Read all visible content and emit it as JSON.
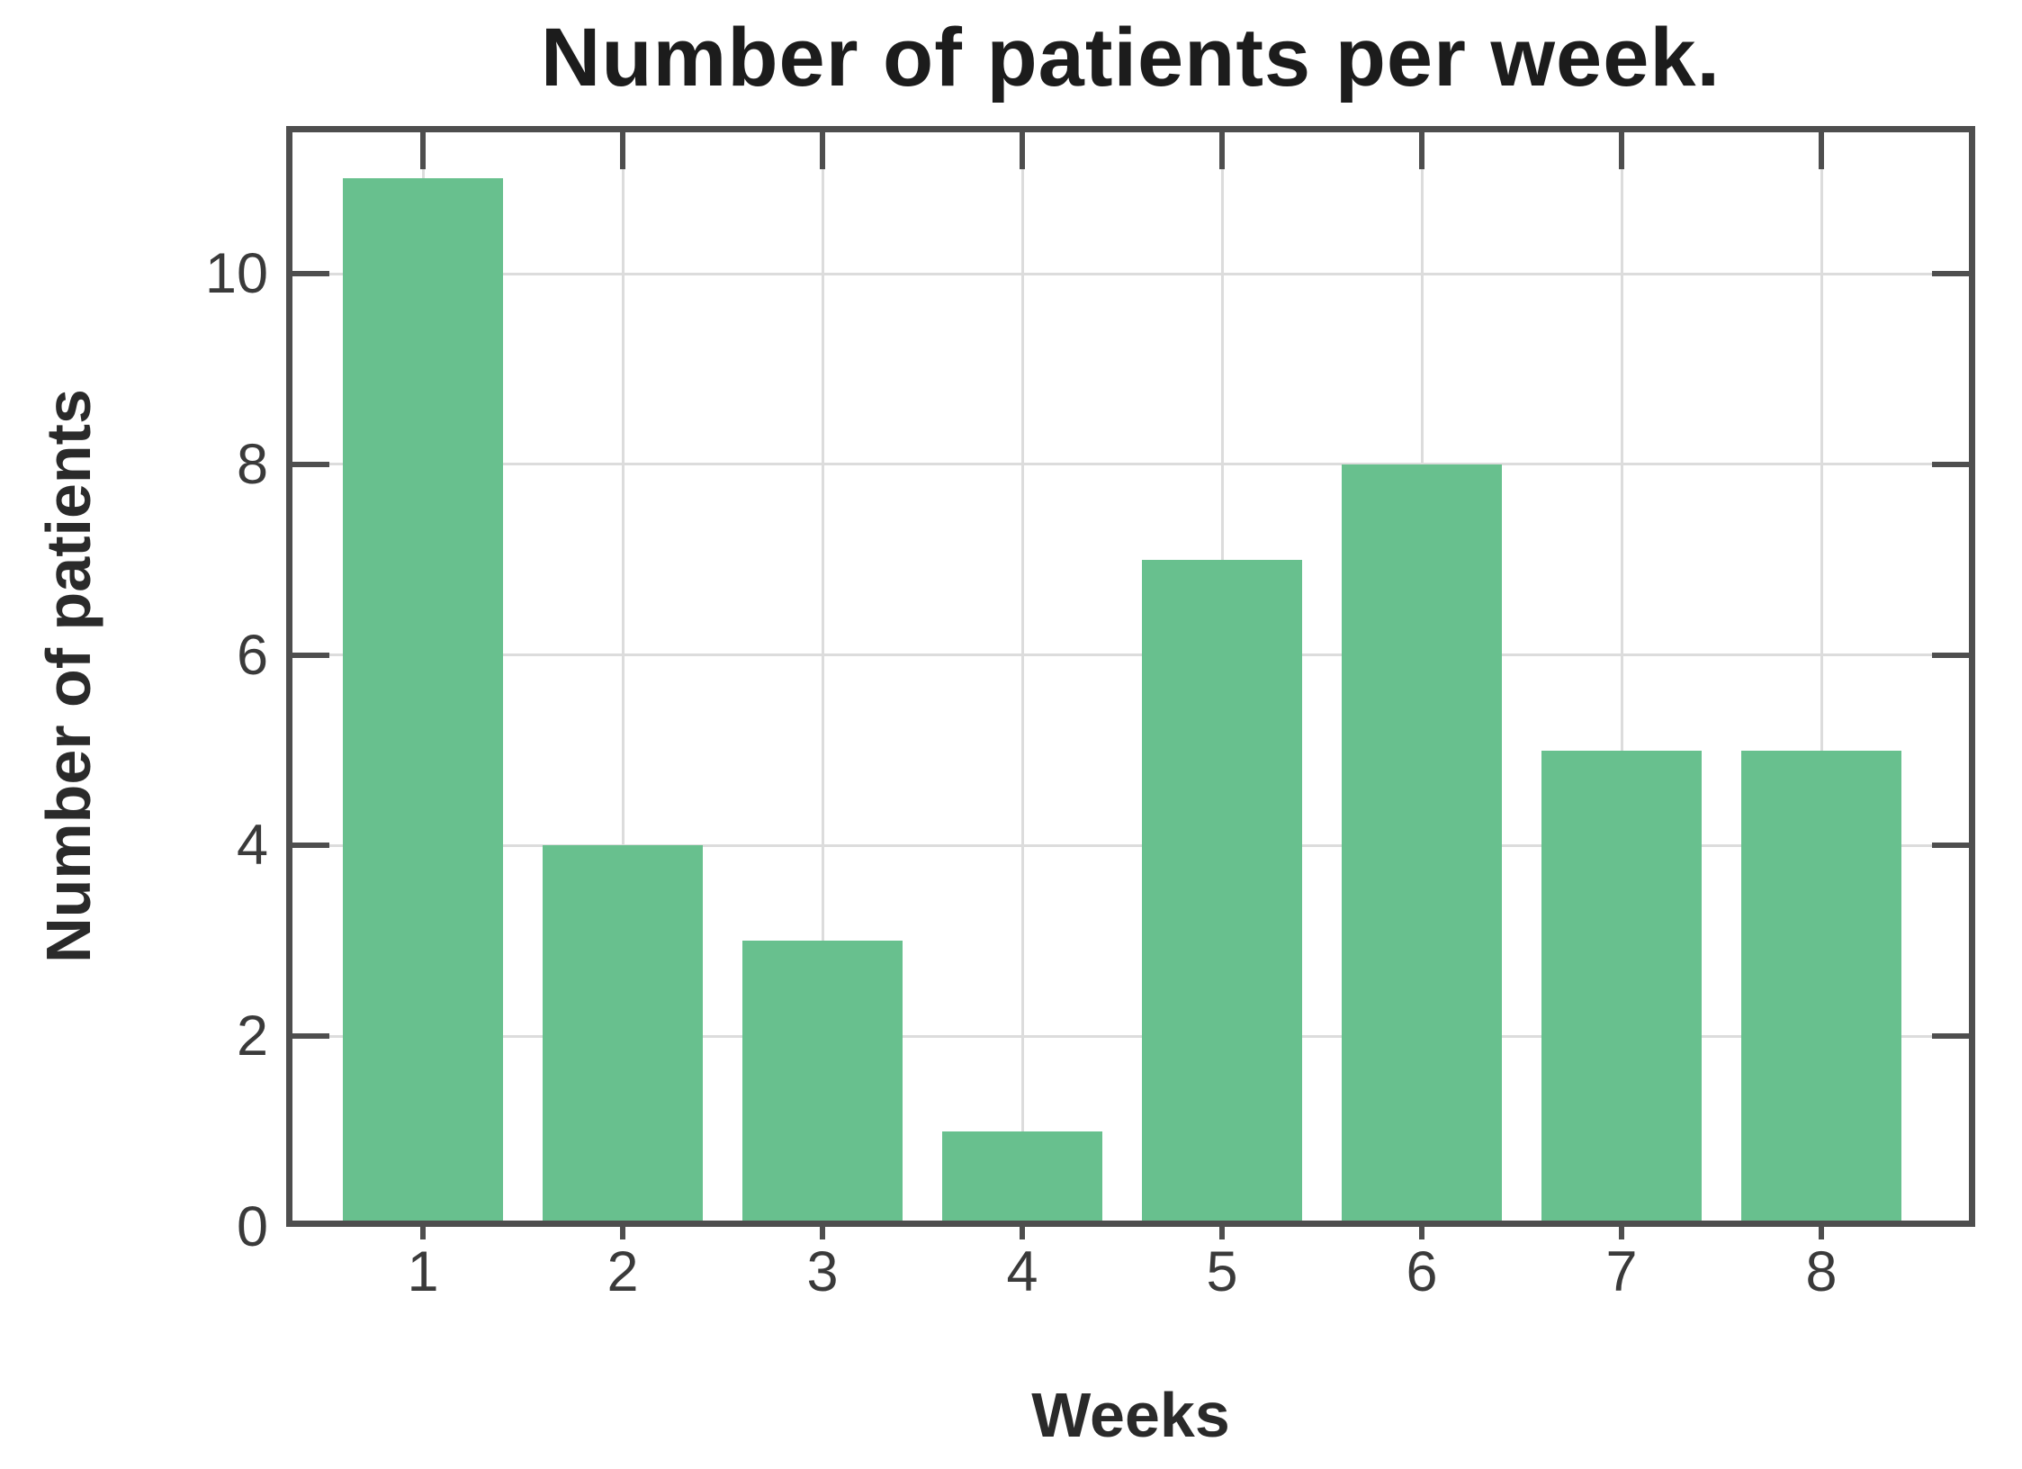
{
  "chart_data": {
    "type": "bar",
    "title": "Number of patients per week.",
    "xlabel": "Weeks",
    "ylabel": "Number of patients",
    "categories": [
      "1",
      "2",
      "3",
      "4",
      "5",
      "6",
      "7",
      "8"
    ],
    "values": [
      11,
      4,
      3,
      1,
      7,
      8,
      5,
      5
    ],
    "yticks": [
      0,
      2,
      4,
      6,
      8,
      10
    ],
    "ylim": [
      0,
      11.55
    ],
    "grid": true,
    "legend": "none",
    "bar_width_fraction": 0.8
  },
  "colors": {
    "bar_fill": "#68c08e",
    "grid": "#dcdcdc",
    "spine": "#4e4e4e",
    "tick": "#4e4e4e",
    "title_text": "#1c1c1c",
    "label_text": "#2a2a2a",
    "tick_text": "#3a3a3a",
    "background": "#ffffff"
  }
}
